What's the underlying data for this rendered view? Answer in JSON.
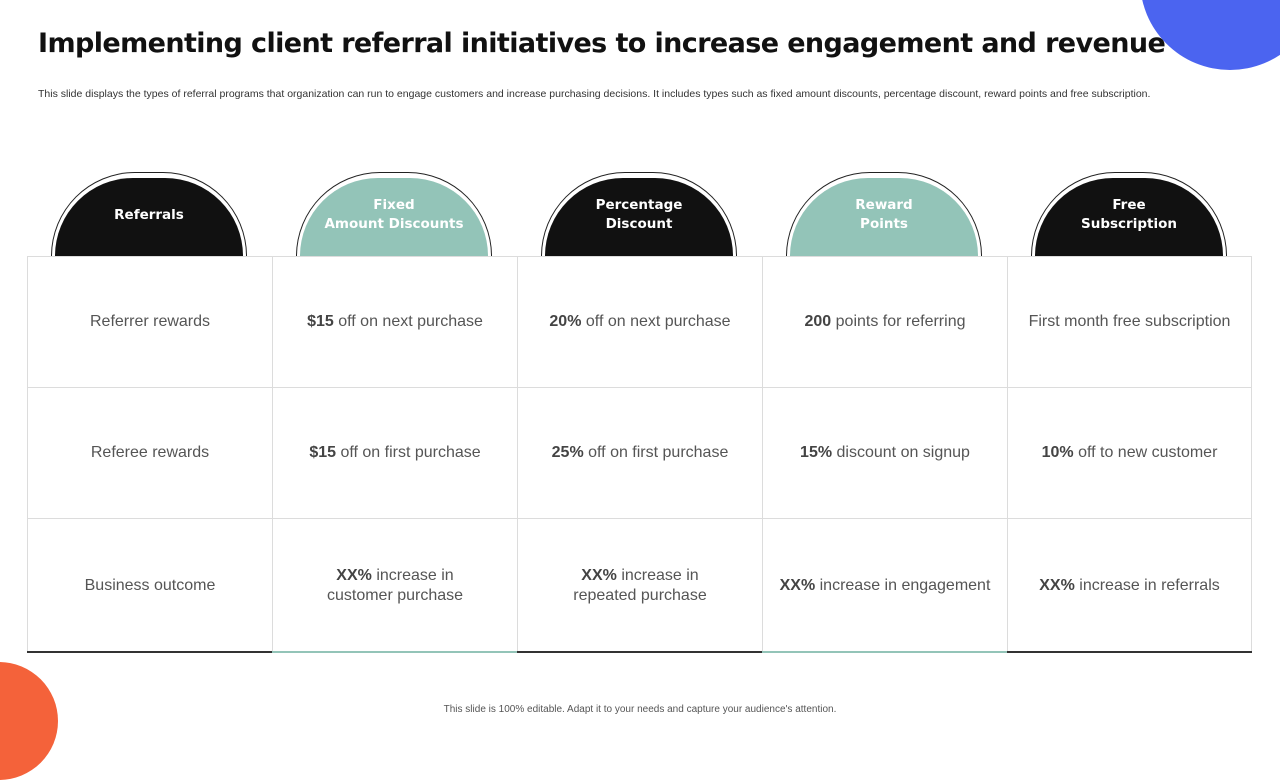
{
  "slide": {
    "title": "Implementing client referral initiatives to increase engagement and revenue",
    "subtitle": "This slide displays the types of referral programs that organization can run to engage customers and increase purchasing decisions. It includes types such as fixed amount discounts, percentage discount, reward points and free subscription.",
    "footer": "This slide is 100% editable. Adapt it to your needs and capture your audience's attention."
  },
  "colors": {
    "dark": "#111111",
    "teal": "#93c4b8",
    "corner_blue": "#4b64f0",
    "corner_orange": "#f4623a"
  },
  "columns": [
    {
      "header": "Referrals",
      "style": "dark",
      "cells": [
        {
          "bold": "",
          "text": "Referrer rewards"
        },
        {
          "bold": "",
          "text": "Referee rewards"
        },
        {
          "bold": "",
          "text": "Business outcome"
        }
      ]
    },
    {
      "header": "Fixed\nAmount Discounts",
      "style": "teal",
      "cells": [
        {
          "bold": "$15",
          "text": " off on next purchase"
        },
        {
          "bold": "$15",
          "text": " off on first purchase"
        },
        {
          "bold": "XX%",
          "text": " increase in customer purchase"
        }
      ]
    },
    {
      "header": "Percentage\nDiscount",
      "style": "dark",
      "cells": [
        {
          "bold": "20%",
          "text": " off on next purchase"
        },
        {
          "bold": "25%",
          "text": " off on first purchase"
        },
        {
          "bold": "XX%",
          "text": " increase in repeated purchase"
        }
      ]
    },
    {
      "header": "Reward\nPoints",
      "style": "teal",
      "cells": [
        {
          "bold": "200",
          "text": " points for referring"
        },
        {
          "bold": "15%",
          "text": " discount on signup"
        },
        {
          "bold": "XX%",
          "text": " increase in engagement"
        }
      ]
    },
    {
      "header": "Free\nSubscription",
      "style": "dark",
      "cells": [
        {
          "bold": "",
          "text": "First month free subscription"
        },
        {
          "bold": "10%",
          "text": " off to new customer"
        },
        {
          "bold": "XX%",
          "text": " increase in referrals"
        }
      ]
    }
  ]
}
